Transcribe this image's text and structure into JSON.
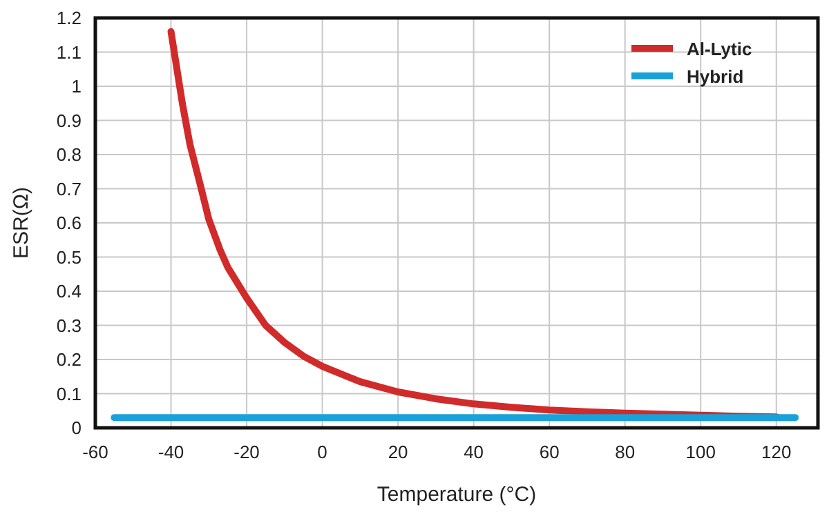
{
  "chart_data": {
    "type": "line",
    "xlabel": "Temperature (°C)",
    "ylabel": "ESR(Ω)",
    "xlim": [
      -60,
      131
    ],
    "ylim": [
      0,
      1.2
    ],
    "xticks": [
      -60,
      -40,
      -20,
      0,
      20,
      40,
      60,
      80,
      100,
      120
    ],
    "yticks": [
      0,
      0.1,
      0.2,
      0.3,
      0.4,
      0.5,
      0.6,
      0.7,
      0.8,
      0.9,
      1,
      1.1,
      1.2
    ],
    "grid": true,
    "legend": "top right",
    "marker": "none",
    "line_style": "solid",
    "series": [
      {
        "name": "Al-Lytic",
        "color": "#d12a2a",
        "x": [
          -40,
          -37,
          -35,
          -32,
          -30,
          -27,
          -25,
          -20,
          -15,
          -10,
          -5,
          0,
          10,
          20,
          30,
          40,
          50,
          60,
          70,
          80,
          90,
          100,
          110,
          120
        ],
        "values": [
          1.16,
          0.95,
          0.83,
          0.7,
          0.61,
          0.52,
          0.47,
          0.38,
          0.3,
          0.25,
          0.21,
          0.18,
          0.135,
          0.105,
          0.085,
          0.07,
          0.06,
          0.052,
          0.047,
          0.043,
          0.04,
          0.037,
          0.034,
          0.032
        ]
      },
      {
        "name": "Hybrid",
        "color": "#1ba1d9",
        "x": [
          -55,
          125
        ],
        "values": [
          0.03,
          0.03
        ]
      }
    ]
  }
}
